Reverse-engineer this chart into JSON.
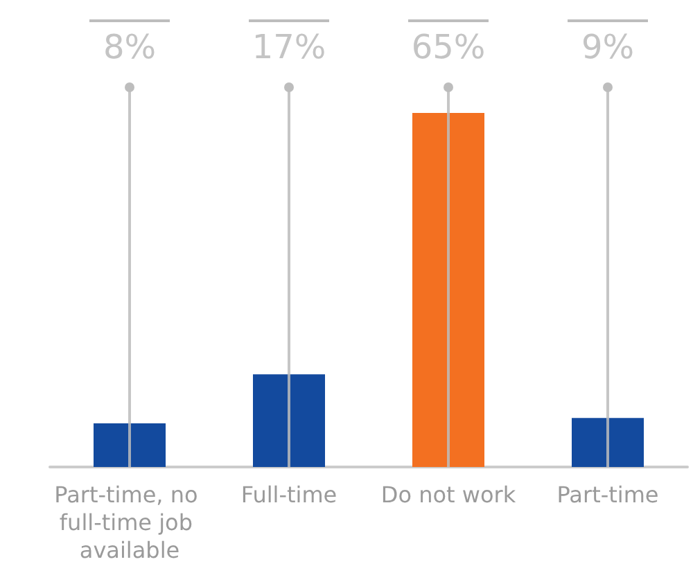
{
  "chart_data": {
    "type": "bar",
    "categories": [
      "Part-time, no full-time job available",
      "Full-time",
      "Do not work",
      "Part-time"
    ],
    "values": [
      8,
      17,
      65,
      9
    ],
    "colors": [
      "#134a9e",
      "#134a9e",
      "#f37021",
      "#134a9e"
    ],
    "value_labels": [
      "8%",
      "17%",
      "65%",
      "9%"
    ],
    "grid": "x"
  }
}
